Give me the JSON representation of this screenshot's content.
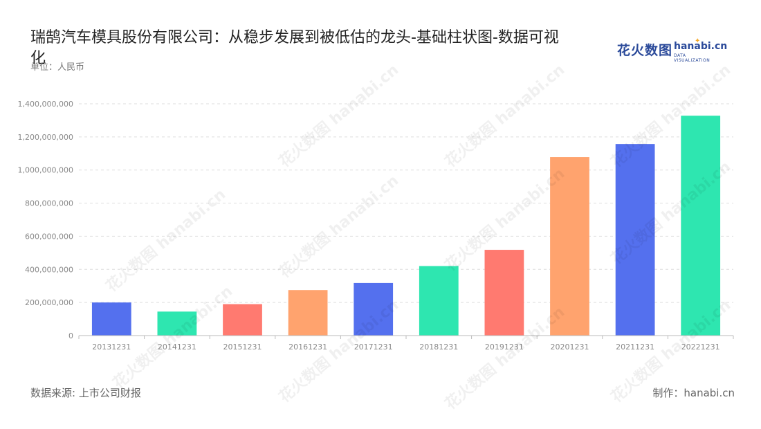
{
  "title": "瑞鹄汽车模具股份有限公司：从稳步发展到被低估的龙头-基础柱状图-数据可视化",
  "unit": "单位：人民币",
  "logo": {
    "cn": "花火数图",
    "en": "hanabi.cn",
    "en_sub": "DATA VISUALIZATION"
  },
  "watermark_text": "花火数图 hanabi.cn",
  "footer": {
    "source": "数据来源: 上市公司财报",
    "maker": "制作：hanabi.cn"
  },
  "chart_data": {
    "type": "bar",
    "categories": [
      "20131231",
      "20141231",
      "20151231",
      "20161231",
      "20171231",
      "20181231",
      "20191231",
      "20201231",
      "20211231",
      "20221231"
    ],
    "values": [
      200000000,
      145000000,
      190000000,
      275000000,
      318000000,
      420000000,
      518000000,
      1078000000,
      1157000000,
      1328000000
    ],
    "colors": [
      "#5470ee",
      "#2ee6b0",
      "#ff7a70",
      "#ffa36e",
      "#5470ee",
      "#2ee6b0",
      "#ff7a70",
      "#ffa36e",
      "#5470ee",
      "#2ee6b0"
    ],
    "yticks": [
      "0",
      "200,000,000",
      "400,000,000",
      "600,000,000",
      "800,000,000",
      "1,000,000,000",
      "1,200,000,000",
      "1,400,000,000"
    ],
    "ylim": [
      0,
      1400000000
    ],
    "grid": true,
    "legend": "none"
  }
}
